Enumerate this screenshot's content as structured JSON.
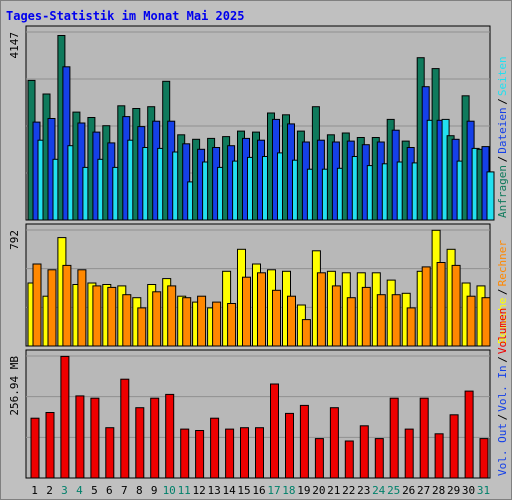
{
  "title": "Tages-Statistik im Monat Mai 2025",
  "colors": {
    "frame_bg": "#c0c0c0",
    "plot_bg": "#b8b8b8",
    "title": "#0000ee",
    "grid": "#909090",
    "anfragen": "#0f7a5c",
    "dateien": "#1540e8",
    "seiten": "#22e0f0",
    "besuche": "#ffff00",
    "rechner": "#ff8800",
    "volumen": "#ee0000",
    "weekend_label": "#00806a",
    "weekday_label": "#000000"
  },
  "chart_data": [
    {
      "type": "bar",
      "panel": "requests",
      "ymax_label": "4147",
      "ylim": [
        0,
        4147
      ],
      "categories": [
        "1",
        "2",
        "3",
        "4",
        "5",
        "6",
        "7",
        "8",
        "9",
        "10",
        "11",
        "12",
        "13",
        "14",
        "15",
        "16",
        "17",
        "18",
        "19",
        "20",
        "21",
        "22",
        "23",
        "24",
        "25",
        "26",
        "27",
        "28",
        "29",
        "30",
        "31"
      ],
      "series": [
        {
          "name": "Anfragen",
          "color_key": "anfragen",
          "values": [
            3080,
            2780,
            4070,
            2380,
            2260,
            2080,
            2520,
            2460,
            2500,
            3060,
            1880,
            1780,
            1800,
            1840,
            1960,
            1940,
            2360,
            2320,
            1960,
            2500,
            1880,
            1920,
            1820,
            1820,
            2220,
            1740,
            3580,
            3340,
            1860,
            2740,
            1560
          ]
        },
        {
          "name": "Dateien",
          "color_key": "dateien",
          "values": [
            2160,
            2240,
            3380,
            2140,
            1940,
            1700,
            2280,
            2060,
            2180,
            2180,
            1680,
            1560,
            1600,
            1640,
            1800,
            1760,
            2220,
            2120,
            1720,
            1760,
            1720,
            1740,
            1660,
            1720,
            1980,
            1600,
            2940,
            2200,
            1780,
            2180,
            1620
          ]
        },
        {
          "name": "Seiten",
          "color_key": "seiten",
          "values": [
            1760,
            1340,
            1640,
            1160,
            1340,
            1160,
            1760,
            1600,
            1580,
            1500,
            840,
            1280,
            1160,
            1300,
            1380,
            1400,
            1480,
            1320,
            1120,
            1120,
            1140,
            1400,
            1200,
            1240,
            1280,
            1260,
            2200,
            2220,
            1300,
            1580,
            1060
          ]
        }
      ],
      "legend": [
        "Anfragen",
        "Dateien",
        "Seiten"
      ]
    },
    {
      "type": "bar",
      "panel": "visits",
      "ymax_label": "792",
      "ylim": [
        0,
        792
      ],
      "categories": [
        "1",
        "2",
        "3",
        "4",
        "5",
        "6",
        "7",
        "8",
        "9",
        "10",
        "11",
        "12",
        "13",
        "14",
        "15",
        "16",
        "17",
        "18",
        "19",
        "20",
        "21",
        "22",
        "23",
        "24",
        "25",
        "26",
        "27",
        "28",
        "29",
        "30",
        "31"
      ],
      "series": [
        {
          "name": "Besuche",
          "color_key": "besuche",
          "values": [
            430,
            340,
            740,
            420,
            430,
            420,
            410,
            330,
            420,
            460,
            340,
            300,
            260,
            510,
            660,
            560,
            520,
            510,
            280,
            650,
            510,
            500,
            500,
            500,
            450,
            360,
            510,
            790,
            660,
            430,
            410
          ]
        },
        {
          "name": "Rechner",
          "color_key": "rechner",
          "values": [
            560,
            520,
            550,
            520,
            410,
            400,
            350,
            260,
            370,
            410,
            330,
            340,
            300,
            290,
            470,
            500,
            380,
            340,
            180,
            500,
            410,
            330,
            400,
            350,
            350,
            260,
            540,
            570,
            550,
            340,
            330
          ]
        }
      ],
      "legend": [
        "Besuche",
        "Rechner"
      ]
    },
    {
      "type": "bar",
      "panel": "volume",
      "ymax_label": "256.94 MB",
      "ylim": [
        0,
        256.94
      ],
      "categories": [
        "1",
        "2",
        "3",
        "4",
        "5",
        "6",
        "7",
        "8",
        "9",
        "10",
        "11",
        "12",
        "13",
        "14",
        "15",
        "16",
        "17",
        "18",
        "19",
        "20",
        "21",
        "22",
        "23",
        "24",
        "25",
        "26",
        "27",
        "28",
        "29",
        "30",
        "31"
      ],
      "series": [
        {
          "name": "Volumen",
          "color_key": "volumen",
          "values": [
            126,
            138,
            256,
            173,
            168,
            106,
            208,
            148,
            168,
            176,
            103,
            100,
            126,
            103,
            106,
            106,
            198,
            136,
            153,
            83,
            148,
            78,
            110,
            83,
            168,
            103,
            168,
            93,
            133,
            183,
            83
          ]
        }
      ],
      "legend": [
        "Volumen"
      ]
    }
  ],
  "right_legend": [
    {
      "text": "Anfragen",
      "color_key": "anfragen",
      "panel": "requests"
    },
    {
      "text": "Dateien",
      "color_key": "dateien",
      "panel": "requests"
    },
    {
      "text": "Seiten",
      "color_key": "seiten",
      "panel": "requests"
    },
    {
      "text": "Besuche",
      "color_key": "besuche",
      "panel": "visits"
    },
    {
      "text": "Rechner",
      "color_key": "rechner",
      "panel": "visits"
    },
    {
      "text": "Vol. Out",
      "color_key": "dateien",
      "panel": "volume"
    },
    {
      "text": "Vol. In",
      "color_key": "dateien",
      "panel": "volume"
    },
    {
      "text": "Volumen",
      "color_key": "volumen",
      "panel": "volume"
    }
  ],
  "weekend_days": [
    "3",
    "4",
    "10",
    "11",
    "17",
    "18",
    "24",
    "25",
    "31"
  ]
}
